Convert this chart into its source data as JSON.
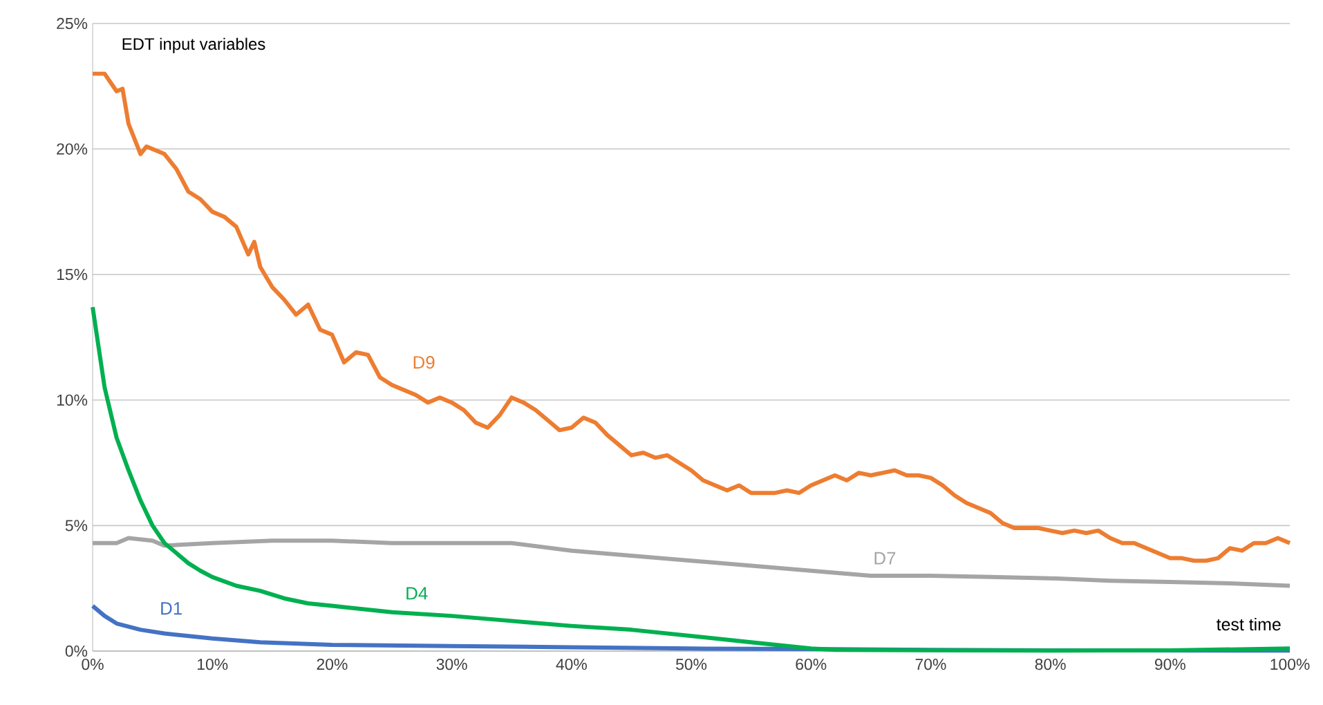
{
  "chart_data": {
    "type": "line",
    "title": "EDT input variables",
    "xlabel": "test time",
    "xlim": [
      0,
      100
    ],
    "ylim": [
      0,
      25
    ],
    "xticks": [
      {
        "value": 0,
        "label": "0%"
      },
      {
        "value": 10,
        "label": "10%"
      },
      {
        "value": 20,
        "label": "20%"
      },
      {
        "value": 30,
        "label": "30%"
      },
      {
        "value": 40,
        "label": "40%"
      },
      {
        "value": 50,
        "label": "50%"
      },
      {
        "value": 60,
        "label": "60%"
      },
      {
        "value": 70,
        "label": "70%"
      },
      {
        "value": 80,
        "label": "80%"
      },
      {
        "value": 90,
        "label": "90%"
      },
      {
        "value": 100,
        "label": "100%"
      }
    ],
    "yticks": [
      {
        "value": 0,
        "label": "0%"
      },
      {
        "value": 5,
        "label": "5%"
      },
      {
        "value": 10,
        "label": "10%"
      },
      {
        "value": 15,
        "label": "15%"
      },
      {
        "value": 20,
        "label": "20%"
      },
      {
        "value": 25,
        "label": "25%"
      }
    ],
    "grid": "y",
    "legend": false,
    "marker": "none",
    "line_style": "solid",
    "series": [
      {
        "name": "D1",
        "color": "#4472c4",
        "x": [
          0,
          1,
          2,
          4,
          6,
          8,
          10,
          14,
          20,
          30,
          40,
          50,
          60,
          70,
          80,
          100
        ],
        "values": [
          1.8,
          1.4,
          1.1,
          0.85,
          0.7,
          0.6,
          0.5,
          0.35,
          0.25,
          0.2,
          0.15,
          0.1,
          0.08,
          0.05,
          0.03,
          0.02
        ]
      },
      {
        "name": "D7",
        "color": "#a5a5a5",
        "x": [
          0,
          2,
          3,
          5,
          6,
          10,
          15,
          20,
          25,
          30,
          35,
          40,
          45,
          50,
          55,
          60,
          65,
          70,
          75,
          80,
          85,
          90,
          95,
          100
        ],
        "values": [
          4.3,
          4.3,
          4.5,
          4.4,
          4.2,
          4.3,
          4.4,
          4.4,
          4.3,
          4.3,
          4.3,
          4.0,
          3.8,
          3.6,
          3.4,
          3.2,
          3.0,
          3.0,
          2.95,
          2.9,
          2.8,
          2.75,
          2.7,
          2.6
        ]
      },
      {
        "name": "D4",
        "color": "#00b050",
        "x": [
          0,
          1,
          2,
          3,
          4,
          5,
          6,
          7,
          8,
          9,
          10,
          12,
          14,
          16,
          18,
          20,
          25,
          30,
          35,
          40,
          45,
          50,
          55,
          60,
          62,
          70,
          80,
          90,
          100
        ],
        "values": [
          13.7,
          10.5,
          8.5,
          7.2,
          6.0,
          5.0,
          4.3,
          3.9,
          3.5,
          3.2,
          2.95,
          2.6,
          2.4,
          2.1,
          1.9,
          1.8,
          1.55,
          1.4,
          1.2,
          1.0,
          0.85,
          0.6,
          0.35,
          0.1,
          0.05,
          0.03,
          0.02,
          0.03,
          0.1
        ]
      },
      {
        "name": "D9",
        "color": "#ed7d31",
        "x": [
          0,
          1,
          2,
          2.5,
          3,
          4,
          4.5,
          6,
          7,
          8,
          9,
          10,
          11,
          12,
          13,
          13.5,
          14,
          15,
          16,
          17,
          18,
          19,
          20,
          21,
          22,
          23,
          24,
          25,
          26,
          27,
          28,
          29,
          30,
          31,
          32,
          33,
          34,
          35,
          36,
          37,
          38,
          39,
          40,
          41,
          42,
          43,
          44,
          45,
          46,
          47,
          48,
          49,
          50,
          51,
          52,
          53,
          54,
          55,
          56,
          57,
          58,
          59,
          60,
          61,
          62,
          63,
          64,
          65,
          66,
          67,
          68,
          69,
          70,
          71,
          72,
          73,
          74,
          75,
          76,
          77,
          78,
          79,
          80,
          81,
          82,
          83,
          84,
          85,
          86,
          87,
          88,
          89,
          90,
          91,
          92,
          93,
          94,
          95,
          96,
          97,
          98,
          99,
          100
        ],
        "values": [
          23.0,
          23.0,
          22.3,
          22.4,
          21.0,
          19.8,
          20.1,
          19.8,
          19.2,
          18.3,
          18.0,
          17.5,
          17.3,
          16.9,
          15.8,
          16.3,
          15.3,
          14.5,
          14.0,
          13.4,
          13.8,
          12.8,
          12.6,
          11.5,
          11.9,
          11.8,
          10.9,
          10.6,
          10.4,
          10.2,
          9.9,
          10.1,
          9.9,
          9.6,
          9.1,
          8.9,
          9.4,
          10.1,
          9.9,
          9.6,
          9.2,
          8.8,
          8.9,
          9.3,
          9.1,
          8.6,
          8.2,
          7.8,
          7.9,
          7.7,
          7.8,
          7.5,
          7.2,
          6.8,
          6.6,
          6.4,
          6.6,
          6.3,
          6.3,
          6.3,
          6.4,
          6.3,
          6.6,
          6.8,
          7.0,
          6.8,
          7.1,
          7.0,
          7.1,
          7.2,
          7.0,
          7.0,
          6.9,
          6.6,
          6.2,
          5.9,
          5.7,
          5.5,
          5.1,
          4.9,
          4.9,
          4.9,
          4.8,
          4.7,
          4.8,
          4.7,
          4.8,
          4.5,
          4.3,
          4.3,
          4.1,
          3.9,
          3.7,
          3.7,
          3.6,
          3.6,
          3.7,
          4.1,
          4.0,
          4.3,
          4.3,
          4.5,
          4.3
        ]
      }
    ]
  }
}
